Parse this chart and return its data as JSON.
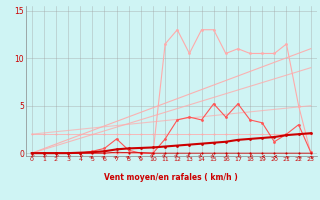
{
  "x": [
    0,
    1,
    2,
    3,
    4,
    5,
    6,
    7,
    8,
    9,
    10,
    11,
    12,
    13,
    14,
    15,
    16,
    17,
    18,
    19,
    20,
    21,
    22,
    23
  ],
  "line_gust_light": [
    0,
    0,
    0,
    0,
    0,
    0,
    0,
    0,
    0,
    0,
    0,
    11.5,
    13,
    10.5,
    13,
    13,
    10.5,
    11,
    10.5,
    10.5,
    10.5,
    11.5,
    5,
    0
  ],
  "line_moyen_med": [
    0,
    0,
    0,
    0,
    0,
    0.2,
    0.5,
    1.5,
    0.3,
    0,
    0,
    1.5,
    3.5,
    3.8,
    3.5,
    5.2,
    3.8,
    5.2,
    3.5,
    3.2,
    1.2,
    2.0,
    3.0,
    0.1
  ],
  "line_flat": [
    2,
    2,
    2,
    2,
    2,
    2,
    2,
    2,
    2,
    2,
    2,
    2,
    2,
    2,
    2,
    2,
    2,
    2,
    2,
    2,
    2,
    2,
    2,
    2
  ],
  "line_trend1": [
    0,
    0.478,
    0.957,
    1.435,
    1.913,
    2.391,
    2.87,
    3.348,
    3.826,
    4.304,
    4.783,
    5.261,
    5.739,
    6.217,
    6.696,
    7.174,
    7.652,
    8.13,
    8.609,
    9.087,
    9.565,
    10.043,
    10.522,
    11.0
  ],
  "line_trend2": [
    0,
    0.391,
    0.783,
    1.174,
    1.565,
    1.957,
    2.348,
    2.739,
    3.13,
    3.522,
    3.913,
    4.304,
    4.696,
    5.087,
    5.478,
    5.87,
    6.261,
    6.652,
    7.043,
    7.435,
    7.826,
    8.217,
    8.609,
    9.0
  ],
  "line_trend3": [
    2,
    2.13,
    2.26,
    2.39,
    2.52,
    2.65,
    2.78,
    2.91,
    3.04,
    3.17,
    3.3,
    3.43,
    3.56,
    3.7,
    3.83,
    3.96,
    4.09,
    4.22,
    4.35,
    4.48,
    4.61,
    4.74,
    4.87,
    5.0
  ],
  "line_zero": [
    0,
    0,
    0,
    0,
    0,
    0,
    0,
    0.1,
    0.05,
    0.05,
    0,
    0,
    0,
    0,
    0,
    0,
    0,
    0,
    0,
    0,
    0,
    0,
    0,
    0
  ],
  "line_main_dark": [
    0,
    0,
    0,
    0,
    0.05,
    0.1,
    0.2,
    0.4,
    0.5,
    0.55,
    0.6,
    0.7,
    0.8,
    0.9,
    1.0,
    1.1,
    1.2,
    1.4,
    1.5,
    1.6,
    1.7,
    1.9,
    2.0,
    2.1
  ],
  "arrow_angles": [
    225,
    225,
    225,
    225,
    225,
    45,
    45,
    45,
    45,
    45,
    135,
    135,
    135,
    135,
    135,
    135,
    225,
    225,
    225,
    270,
    270,
    315,
    315,
    315
  ],
  "bg_color": "#cff4f4",
  "grid_color": "#999999",
  "color_dark_red": "#cc0000",
  "color_light_pink": "#ffaaaa",
  "color_medium_red": "#ff5555",
  "xlabel": "Vent moyen/en rafales ( km/h )",
  "yticks": [
    0,
    5,
    10,
    15
  ],
  "xticks": [
    0,
    1,
    2,
    3,
    4,
    5,
    6,
    7,
    8,
    9,
    10,
    11,
    12,
    13,
    14,
    15,
    16,
    17,
    18,
    19,
    20,
    21,
    22,
    23
  ],
  "ylim": [
    0,
    15
  ],
  "xlim": [
    -0.5,
    23.5
  ]
}
